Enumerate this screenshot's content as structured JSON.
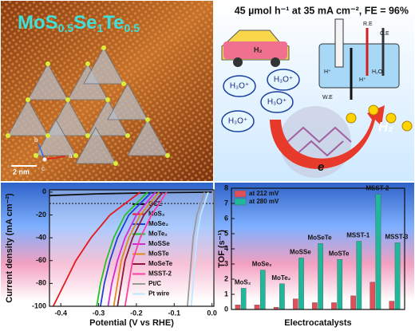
{
  "image": {
    "formula": [
      "MoS",
      "0.5",
      "Se",
      "1",
      "Te",
      "0.5"
    ],
    "scale_bar": "2 nm",
    "axes": [
      "b",
      "a",
      "c"
    ]
  },
  "headline": "45 µmol h⁻¹ at 35 mA cm⁻², FE = 96%",
  "scheme": {
    "car": "H₂",
    "cell": [
      "R.E",
      "C.E",
      "W.E",
      "H₂O",
      "H⁺",
      "H⁺"
    ],
    "ions": [
      "H₃O⁺",
      "H₃O⁺",
      "H₃O⁺",
      "H₃O⁺"
    ],
    "electron": "e",
    "product": "H₂"
  },
  "chart_data": [
    {
      "type": "line",
      "xlabel": "Potential (V vs RHE)",
      "ylabel": "Current density (mA cm⁻²)",
      "xlim": [
        -0.43,
        0.005
      ],
      "ylim": [
        -100,
        2
      ],
      "xticks": [
        -0.4,
        -0.3,
        -0.2,
        -0.1,
        {
          "value": 0,
          "label": "0.0"
        }
      ],
      "yticks": [
        0,
        -20,
        -40,
        -60,
        -80,
        -100
      ],
      "reference_line": -10,
      "series": [
        {
          "name": "GCE",
          "color": "#111111",
          "x": [
            -0.43,
            -0.3,
            -0.15,
            0.0
          ],
          "values": [
            -3,
            -1.5,
            -0.5,
            0
          ]
        },
        {
          "name": "MoS₂",
          "color": "#e41a1c",
          "x": [
            -0.42,
            -0.39,
            -0.36,
            -0.32,
            -0.27,
            -0.19
          ],
          "values": [
            -100,
            -80,
            -60,
            -40,
            -20,
            0
          ]
        },
        {
          "name": "MoSe₂",
          "color": "#1f3fd6",
          "x": [
            -0.295,
            -0.285,
            -0.27,
            -0.25,
            -0.22,
            -0.16
          ],
          "values": [
            -100,
            -80,
            -60,
            -40,
            -20,
            0
          ]
        },
        {
          "name": "MoTe₂",
          "color": "#22c422",
          "x": [
            -0.305,
            -0.295,
            -0.28,
            -0.26,
            -0.23,
            -0.17
          ],
          "values": [
            -100,
            -80,
            -60,
            -40,
            -20,
            0
          ]
        },
        {
          "name": "MoSSe",
          "color": "#d42ad4",
          "x": [
            -0.275,
            -0.265,
            -0.25,
            -0.23,
            -0.2,
            -0.15
          ],
          "values": [
            -100,
            -80,
            -60,
            -40,
            -20,
            0
          ]
        },
        {
          "name": "MoSTe",
          "color": "#e08a1a",
          "x": [
            -0.26,
            -0.25,
            -0.24,
            -0.22,
            -0.19,
            -0.14
          ],
          "values": [
            -100,
            -80,
            -60,
            -40,
            -20,
            0
          ]
        },
        {
          "name": "MoSeTe",
          "color": "#8b1a3a",
          "x": [
            -0.25,
            -0.24,
            -0.23,
            -0.21,
            -0.18,
            -0.13
          ],
          "values": [
            -100,
            -80,
            -60,
            -40,
            -20,
            0
          ]
        },
        {
          "name": "MSST-2",
          "color": "#ff3fa0",
          "x": [
            -0.23,
            -0.22,
            -0.21,
            -0.19,
            -0.16,
            -0.12
          ],
          "values": [
            -100,
            -80,
            -60,
            -40,
            -20,
            0
          ]
        },
        {
          "name": "Pt/C",
          "color": "#9a9a9a",
          "x": [
            -0.065,
            -0.06,
            -0.055,
            -0.05,
            -0.04,
            -0.02
          ],
          "values": [
            -100,
            -80,
            -60,
            -40,
            -20,
            0
          ]
        },
        {
          "name": "Pt wire",
          "color": "#bfe6ff",
          "x": [
            -0.055,
            -0.05,
            -0.045,
            -0.04,
            -0.03,
            -0.01
          ],
          "values": [
            -100,
            -80,
            -60,
            -40,
            -20,
            0
          ]
        }
      ]
    },
    {
      "type": "bar",
      "xlabel": "Electrocatalysts",
      "ylabel": "TOF (s⁻¹)",
      "ylim": [
        0,
        8
      ],
      "yticks": [
        0,
        1,
        2,
        3,
        4,
        5,
        6,
        7,
        8
      ],
      "categories": [
        "MoS₂",
        "MoSe₂",
        "MoTe₂",
        "MoSSe",
        "MoSeTe",
        "MoSTe",
        "MSST-1",
        "MSST-2",
        "MSST-3"
      ],
      "series": [
        {
          "name": "at 212 mV",
          "color": "#e0505a",
          "values": [
            0.3,
            0.3,
            0.15,
            0.7,
            0.45,
            0.45,
            0.9,
            1.8,
            0.55
          ]
        },
        {
          "name": "at 280 mV",
          "color": "#1fb89a",
          "values": [
            1.4,
            2.6,
            1.7,
            3.4,
            4.35,
            3.3,
            4.5,
            7.6,
            4.4
          ]
        }
      ]
    }
  ]
}
